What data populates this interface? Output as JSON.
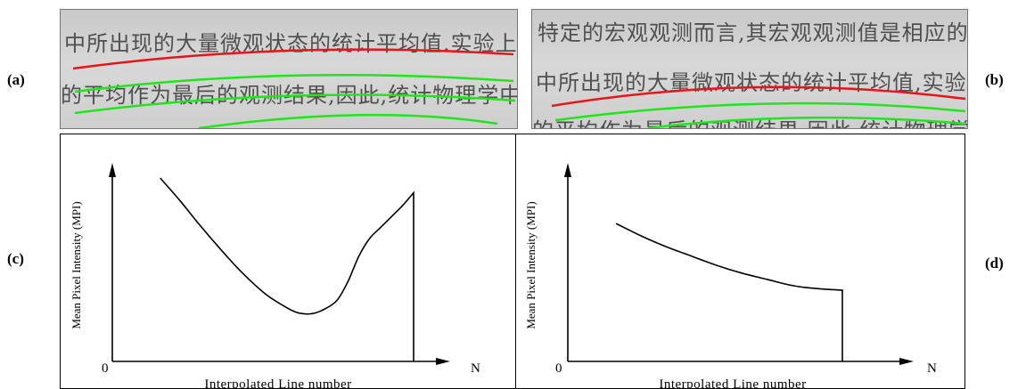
{
  "panels": {
    "a": "(a)",
    "b": "(b)",
    "c": "(c)",
    "d": "(d)"
  },
  "photo_a": {
    "line1": "中所出现的大量微观状态的统计平均值.实验上通常取多",
    "line2": "的平均作为最后的观测结果,因此,统计物理学中把理论上"
  },
  "photo_b": {
    "line1": "特定的宏观观测而言,其宏观观测值是相应的微观量对该",
    "line2": "中所出现的大量微观状态的统计平均值,实验上通常取多",
    "line3": "的平均作为最后的观测结果,因此,统计物理学中把理论"
  },
  "colors": {
    "baseline": "#e8141c",
    "guide": "#21e51c",
    "axis": "#000000"
  },
  "chart_data": [
    {
      "type": "line",
      "panel": "(c)",
      "xlabel": "Interpolated Line number",
      "ylabel": "Mean Pixel Intensity (MPI)",
      "origin_label": "0",
      "x_end_label": "N",
      "xlim": [
        0,
        100
      ],
      "ylim": [
        0,
        100
      ],
      "series": [
        {
          "x": [
            8,
            15,
            22,
            30,
            38,
            46,
            52,
            57,
            60,
            63,
            67,
            72,
            76,
            80,
            84,
            88,
            92,
            96,
            100,
            100
          ],
          "y": [
            100,
            88,
            75,
            61,
            48,
            37,
            31,
            27,
            26,
            26,
            28,
            33,
            43,
            57,
            67,
            73,
            79,
            85,
            92,
            0
          ]
        }
      ]
    },
    {
      "type": "line",
      "panel": "(d)",
      "xlabel": "Interpolated Line number",
      "ylabel": "Mean Pixel Intensity (MPI)",
      "origin_label": "0",
      "x_end_label": "N",
      "xlim": [
        0,
        100
      ],
      "ylim": [
        0,
        100
      ],
      "series": [
        {
          "x": [
            10,
            20,
            30,
            40,
            50,
            60,
            70,
            80,
            90,
            100,
            100
          ],
          "y": [
            89,
            81,
            74,
            68,
            62,
            57,
            53,
            49,
            47,
            46,
            0
          ]
        }
      ]
    }
  ]
}
